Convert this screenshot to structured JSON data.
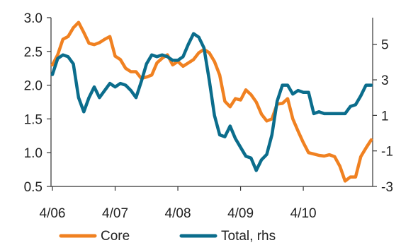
{
  "chart_data": {
    "type": "line",
    "title": "",
    "xlabel": "",
    "x_ticks": [
      "4/06",
      "4/07",
      "4/08",
      "4/09",
      "4/10"
    ],
    "x_range": [
      0,
      57
    ],
    "y_left": {
      "range": [
        0.5,
        3.0
      ],
      "ticks": [
        "0.5",
        "1.0",
        "1.5",
        "2.0",
        "2.5",
        "3.0"
      ]
    },
    "y_right": {
      "range": [
        -3,
        6.5
      ],
      "ticks": [
        "-3",
        "-1",
        "1",
        "3",
        "5"
      ]
    },
    "grid": false,
    "legend_position": "bottom",
    "series": [
      {
        "name": "Core",
        "axis": "left",
        "color": "#F08121",
        "values": [
          2.3,
          2.45,
          2.68,
          2.72,
          2.85,
          2.93,
          2.78,
          2.62,
          2.6,
          2.63,
          2.68,
          2.72,
          2.43,
          2.38,
          2.25,
          2.2,
          2.2,
          2.1,
          2.12,
          2.15,
          2.33,
          2.4,
          2.45,
          2.3,
          2.35,
          2.28,
          2.33,
          2.38,
          2.48,
          2.53,
          2.48,
          2.35,
          2.15,
          1.76,
          1.68,
          1.8,
          1.78,
          1.93,
          1.86,
          1.75,
          1.57,
          1.47,
          1.5,
          1.72,
          1.73,
          1.8,
          1.5,
          1.32,
          1.15,
          1.0,
          0.98,
          0.96,
          0.95,
          0.97,
          0.94,
          0.8,
          0.58,
          0.64,
          0.64,
          0.94,
          1.07,
          1.19
        ]
      },
      {
        "name": "Total, rhs",
        "axis": "right",
        "color": "#0B6D8C",
        "values": [
          3.3,
          4.2,
          4.4,
          4.3,
          3.9,
          2.0,
          1.2,
          2.0,
          2.6,
          2.0,
          2.4,
          2.8,
          2.6,
          2.8,
          2.7,
          2.4,
          2.0,
          2.9,
          3.9,
          4.4,
          4.3,
          4.4,
          4.3,
          4.1,
          4.1,
          4.3,
          5.0,
          5.6,
          5.4,
          4.8,
          3.0,
          1.0,
          -0.1,
          -0.2,
          0.4,
          -0.3,
          -0.8,
          -1.3,
          -1.4,
          -2.1,
          -1.5,
          -1.2,
          -0.1,
          1.8,
          2.7,
          2.7,
          2.2,
          2.4,
          2.3,
          2.3,
          1.1,
          1.2,
          1.1,
          1.1,
          1.1,
          1.1,
          1.1,
          1.5,
          1.6,
          2.1,
          2.7,
          2.7
        ]
      }
    ]
  }
}
